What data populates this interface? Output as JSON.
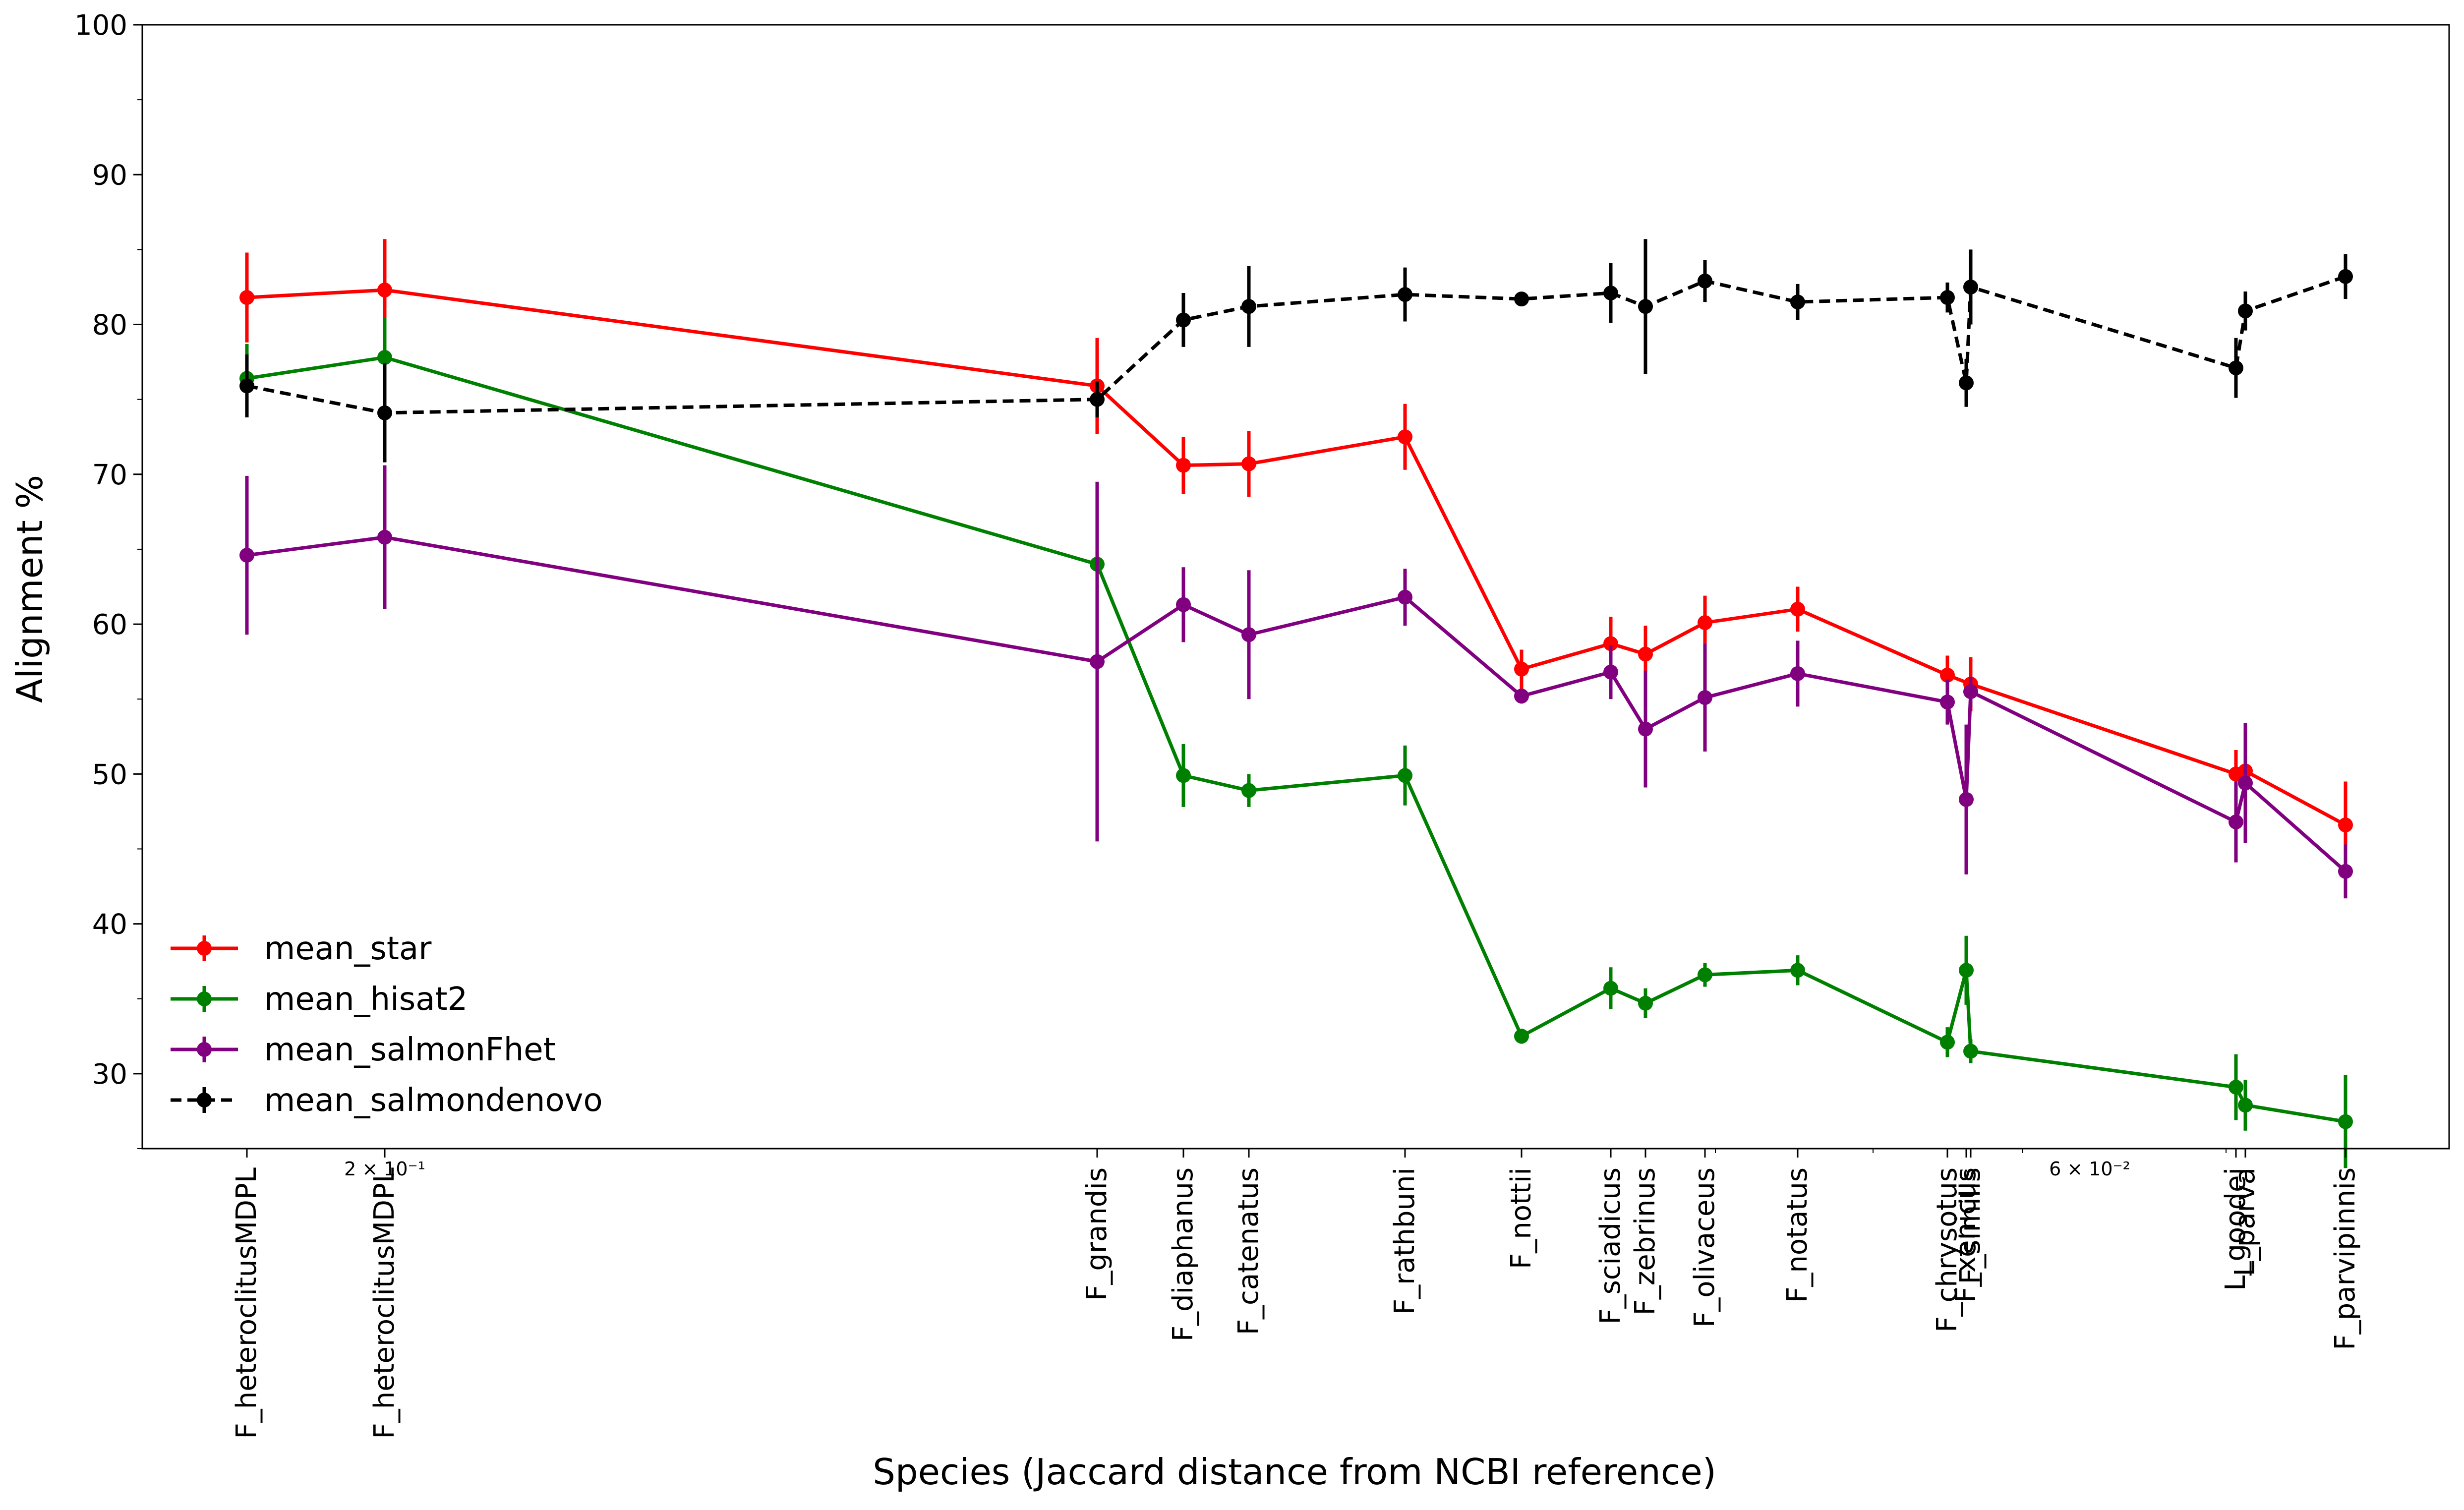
{
  "chart_data": {
    "type": "line",
    "title": "",
    "xlabel": "Species (Jaccard distance from NCBI reference)",
    "ylabel": "Alignment %",
    "ylim": [
      25,
      100
    ],
    "yticks": [
      30,
      40,
      50,
      60,
      70,
      80,
      90,
      100
    ],
    "x_scale": "log",
    "x_axis_minor_labels": [
      "2 × 10⁻¹",
      "6 × 10⁻²"
    ],
    "grid": false,
    "legend_position": "lower-left",
    "categories": [
      "F_heteroclitusMDPL",
      "F_heteroclitusMDPL",
      "F_grandis",
      "F_diaphanus",
      "F_catenatus",
      "F_rathbuni",
      "F_nottii",
      "F_sciadicus",
      "F_zebrinus",
      "F_olivaceus",
      "F_notatus",
      "F_chrysotus",
      "F_xenicus",
      "F_similis",
      "L_goodei",
      "L_parva",
      "F_parvipinnis"
    ],
    "series": [
      {
        "name": "mean_star",
        "color": "#ff0000",
        "linestyle": "solid",
        "points": [
          {
            "i": 0,
            "y": 81.8,
            "err": 3.0
          },
          {
            "i": 1,
            "y": 82.3,
            "err": 3.4
          },
          {
            "i": 2,
            "y": 75.9,
            "err": 3.2
          },
          {
            "i": 3,
            "y": 70.6,
            "err": 1.9
          },
          {
            "i": 4,
            "y": 70.7,
            "err": 2.2
          },
          {
            "i": 5,
            "y": 72.5,
            "err": 2.2
          },
          {
            "i": 6,
            "y": 57.0,
            "err": 1.3
          },
          {
            "i": 7,
            "y": 58.7,
            "err": 1.8
          },
          {
            "i": 8,
            "y": 58.0,
            "err": 1.9
          },
          {
            "i": 9,
            "y": 60.1,
            "err": 1.8
          },
          {
            "i": 10,
            "y": 61.0,
            "err": 1.5
          },
          {
            "i": 11,
            "y": 56.6,
            "err": 1.3
          },
          {
            "i": 13,
            "y": 56.0,
            "err": 1.8
          },
          {
            "i": 14,
            "y": 50.0,
            "err": 1.6
          },
          {
            "i": 15,
            "y": 50.2,
            "err": 1.6
          },
          {
            "i": 16,
            "y": 46.6,
            "err": 2.9
          }
        ]
      },
      {
        "name": "mean_hisat2",
        "color": "#008000",
        "linestyle": "solid",
        "points": [
          {
            "i": 0,
            "y": 76.4,
            "err": 2.3
          },
          {
            "i": 1,
            "y": 77.8,
            "err": 2.7
          },
          {
            "i": 2,
            "y": 64.0,
            "err": 5.5
          },
          {
            "i": 3,
            "y": 49.9,
            "err": 2.1
          },
          {
            "i": 4,
            "y": 48.9,
            "err": 1.1
          },
          {
            "i": 5,
            "y": 49.9,
            "err": 2.0
          },
          {
            "i": 6,
            "y": 32.5,
            "err": 0.5
          },
          {
            "i": 7,
            "y": 35.7,
            "err": 1.4
          },
          {
            "i": 8,
            "y": 34.7,
            "err": 1.0
          },
          {
            "i": 9,
            "y": 36.6,
            "err": 0.8
          },
          {
            "i": 10,
            "y": 36.9,
            "err": 1.0
          },
          {
            "i": 11,
            "y": 32.1,
            "err": 1.0
          },
          {
            "i": 12,
            "y": 36.9,
            "err": 2.3
          },
          {
            "i": 13,
            "y": 31.5,
            "err": 0.8
          },
          {
            "i": 14,
            "y": 29.1,
            "err": 2.2
          },
          {
            "i": 15,
            "y": 27.9,
            "err": 1.7
          },
          {
            "i": 16,
            "y": 26.8,
            "err": 3.1
          }
        ]
      },
      {
        "name": "mean_salmonFhet",
        "color": "#800080",
        "linestyle": "solid",
        "points": [
          {
            "i": 0,
            "y": 64.6,
            "err": 5.3
          },
          {
            "i": 1,
            "y": 65.8,
            "err": 4.8
          },
          {
            "i": 2,
            "y": 57.5,
            "err": 12.0
          },
          {
            "i": 3,
            "y": 61.3,
            "err": 2.5
          },
          {
            "i": 4,
            "y": 59.3,
            "err": 4.3
          },
          {
            "i": 5,
            "y": 61.8,
            "err": 1.9
          },
          {
            "i": 6,
            "y": 55.2,
            "err": 0.5
          },
          {
            "i": 7,
            "y": 56.8,
            "err": 1.8
          },
          {
            "i": 8,
            "y": 53.0,
            "err": 3.9
          },
          {
            "i": 9,
            "y": 55.1,
            "err": 3.6
          },
          {
            "i": 10,
            "y": 56.7,
            "err": 2.2
          },
          {
            "i": 11,
            "y": 54.8,
            "err": 1.5
          },
          {
            "i": 12,
            "y": 48.3,
            "err": 5.0
          },
          {
            "i": 13,
            "y": 55.5,
            "err": 1.0
          },
          {
            "i": 14,
            "y": 46.8,
            "err": 2.7
          },
          {
            "i": 15,
            "y": 49.4,
            "err": 4.0
          },
          {
            "i": 16,
            "y": 43.5,
            "err": 1.8
          }
        ]
      },
      {
        "name": "mean_salmondenovo",
        "color": "#000000",
        "linestyle": "dashed",
        "points": [
          {
            "i": 0,
            "y": 75.9,
            "err": 2.1
          },
          {
            "i": 1,
            "y": 74.1,
            "err": 3.3
          },
          {
            "i": 2,
            "y": 75.0,
            "err": 1.2
          },
          {
            "i": 3,
            "y": 80.3,
            "err": 1.8
          },
          {
            "i": 4,
            "y": 81.2,
            "err": 2.7
          },
          {
            "i": 5,
            "y": 82.0,
            "err": 1.8
          },
          {
            "i": 6,
            "y": 81.7,
            "err": 0.4
          },
          {
            "i": 7,
            "y": 82.1,
            "err": 2.0
          },
          {
            "i": 8,
            "y": 81.2,
            "err": 4.5
          },
          {
            "i": 9,
            "y": 82.9,
            "err": 1.4
          },
          {
            "i": 10,
            "y": 81.5,
            "err": 1.2
          },
          {
            "i": 11,
            "y": 81.8,
            "err": 1.0
          },
          {
            "i": 12,
            "y": 76.1,
            "err": 1.6
          },
          {
            "i": 13,
            "y": 82.5,
            "err": 2.5
          },
          {
            "i": 14,
            "y": 77.1,
            "err": 2.0
          },
          {
            "i": 15,
            "y": 80.9,
            "err": 1.3
          },
          {
            "i": 16,
            "y": 83.2,
            "err": 1.5
          }
        ]
      }
    ]
  }
}
